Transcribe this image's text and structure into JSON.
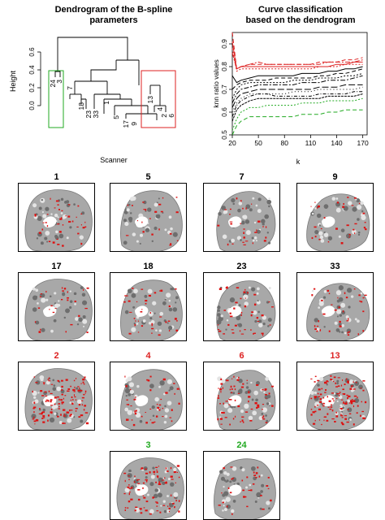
{
  "dendrogram": {
    "title_line1": "Dendrogram of the B-spline",
    "title_line2": "parameters",
    "ylabel": "Height",
    "xlabel": "Scanner",
    "yticks": [
      "0.0",
      "0.2",
      "0.4",
      "0.6"
    ],
    "leaves": [
      "24",
      "3",
      "7",
      "18",
      "23",
      "33",
      "1",
      "5",
      "17",
      "9",
      "13",
      "4",
      "2",
      "6"
    ],
    "groups": [
      {
        "color": "#22aa22",
        "leaves": [
          "24",
          "3"
        ]
      },
      {
        "color": "#dd2222",
        "leaves": [
          "13",
          "4",
          "2",
          "6"
        ]
      }
    ]
  },
  "chart_data": {
    "type": "line",
    "title": "Curve classification based on the dendrogram",
    "title_line1": "Curve classification",
    "title_line2": "based on the dendrogram",
    "xlabel": "k",
    "ylabel": "knn ratio values",
    "xlim": [
      20,
      175
    ],
    "ylim": [
      0.5,
      0.95
    ],
    "xticks": [
      20,
      50,
      80,
      110,
      140,
      170
    ],
    "yticks": [
      0.5,
      0.6,
      0.7,
      0.8,
      0.9
    ],
    "x": [
      20,
      25,
      30,
      40,
      50,
      60,
      70,
      80,
      90,
      100,
      110,
      120,
      130,
      140,
      150,
      160,
      170
    ],
    "series": [
      {
        "color": "#dd2222",
        "dash": "5,3",
        "values": [
          0.95,
          0.79,
          0.8,
          0.81,
          0.81,
          0.81,
          0.81,
          0.81,
          0.81,
          0.81,
          0.81,
          0.82,
          0.82,
          0.82,
          0.83,
          0.83,
          0.84
        ]
      },
      {
        "color": "#dd2222",
        "dash": "",
        "values": [
          0.91,
          0.79,
          0.8,
          0.8,
          0.8,
          0.8,
          0.8,
          0.8,
          0.8,
          0.8,
          0.8,
          0.8,
          0.8,
          0.81,
          0.81,
          0.82,
          0.82
        ]
      },
      {
        "color": "#dd2222",
        "dash": "2,2",
        "values": [
          0.88,
          0.78,
          0.79,
          0.79,
          0.79,
          0.79,
          0.79,
          0.79,
          0.79,
          0.79,
          0.79,
          0.8,
          0.8,
          0.8,
          0.81,
          0.81,
          0.81
        ]
      },
      {
        "color": "#dd2222",
        "dash": "6,2,2,2",
        "values": [
          0.86,
          0.79,
          0.8,
          0.81,
          0.82,
          0.81,
          0.81,
          0.81,
          0.81,
          0.81,
          0.81,
          0.81,
          0.82,
          0.82,
          0.82,
          0.82,
          0.83
        ]
      },
      {
        "color": "#000000",
        "dash": "",
        "values": [
          0.76,
          0.73,
          0.74,
          0.75,
          0.76,
          0.76,
          0.76,
          0.76,
          0.76,
          0.77,
          0.77,
          0.77,
          0.78,
          0.78,
          0.79,
          0.79,
          0.8
        ]
      },
      {
        "color": "#000000",
        "dash": "5,3",
        "values": [
          0.7,
          0.72,
          0.73,
          0.74,
          0.74,
          0.74,
          0.75,
          0.75,
          0.75,
          0.75,
          0.75,
          0.76,
          0.76,
          0.77,
          0.77,
          0.78,
          0.79
        ]
      },
      {
        "color": "#000000",
        "dash": "2,2",
        "values": [
          0.66,
          0.7,
          0.72,
          0.73,
          0.73,
          0.73,
          0.73,
          0.73,
          0.74,
          0.74,
          0.74,
          0.75,
          0.75,
          0.75,
          0.76,
          0.76,
          0.77
        ]
      },
      {
        "color": "#000000",
        "dash": "6,2,2,2",
        "values": [
          0.64,
          0.68,
          0.7,
          0.71,
          0.72,
          0.72,
          0.72,
          0.72,
          0.72,
          0.73,
          0.73,
          0.73,
          0.74,
          0.74,
          0.74,
          0.75,
          0.76
        ]
      },
      {
        "color": "#000000",
        "dash": "8,3",
        "values": [
          0.62,
          0.66,
          0.68,
          0.69,
          0.7,
          0.7,
          0.7,
          0.7,
          0.7,
          0.7,
          0.7,
          0.71,
          0.71,
          0.71,
          0.72,
          0.72,
          0.72
        ]
      },
      {
        "color": "#000000",
        "dash": "1,3",
        "values": [
          0.6,
          0.64,
          0.66,
          0.68,
          0.68,
          0.68,
          0.68,
          0.68,
          0.69,
          0.69,
          0.69,
          0.7,
          0.7,
          0.7,
          0.7,
          0.7,
          0.71
        ]
      },
      {
        "color": "#000000",
        "dash": "4,2,1,2",
        "values": [
          0.58,
          0.63,
          0.65,
          0.67,
          0.68,
          0.68,
          0.67,
          0.67,
          0.67,
          0.67,
          0.67,
          0.68,
          0.68,
          0.68,
          0.68,
          0.69,
          0.69
        ]
      },
      {
        "color": "#000000",
        "dash": "3,1",
        "values": [
          0.56,
          0.61,
          0.63,
          0.65,
          0.66,
          0.66,
          0.66,
          0.66,
          0.66,
          0.66,
          0.66,
          0.66,
          0.67,
          0.67,
          0.67,
          0.67,
          0.68
        ]
      },
      {
        "color": "#22aa22",
        "dash": "2,2",
        "values": [
          0.52,
          0.57,
          0.6,
          0.62,
          0.62,
          0.63,
          0.63,
          0.63,
          0.63,
          0.64,
          0.64,
          0.64,
          0.65,
          0.65,
          0.65,
          0.65,
          0.66
        ]
      },
      {
        "color": "#22aa22",
        "dash": "5,3",
        "values": [
          0.5,
          0.54,
          0.56,
          0.58,
          0.58,
          0.58,
          0.58,
          0.58,
          0.58,
          0.59,
          0.59,
          0.59,
          0.6,
          0.6,
          0.61,
          0.61,
          0.61
        ]
      }
    ]
  },
  "scans": {
    "row1": [
      {
        "label": "1",
        "color": "#000000"
      },
      {
        "label": "5",
        "color": "#000000"
      },
      {
        "label": "7",
        "color": "#000000"
      },
      {
        "label": "9",
        "color": "#000000"
      }
    ],
    "row2": [
      {
        "label": "17",
        "color": "#000000"
      },
      {
        "label": "18",
        "color": "#000000"
      },
      {
        "label": "23",
        "color": "#000000"
      },
      {
        "label": "33",
        "color": "#000000"
      }
    ],
    "row3": [
      {
        "label": "2",
        "color": "#dd2222"
      },
      {
        "label": "4",
        "color": "#dd2222"
      },
      {
        "label": "6",
        "color": "#dd2222"
      },
      {
        "label": "13",
        "color": "#dd2222"
      }
    ],
    "row4": [
      {
        "label": "3",
        "color": "#22aa22"
      },
      {
        "label": "24",
        "color": "#22aa22"
      }
    ]
  }
}
